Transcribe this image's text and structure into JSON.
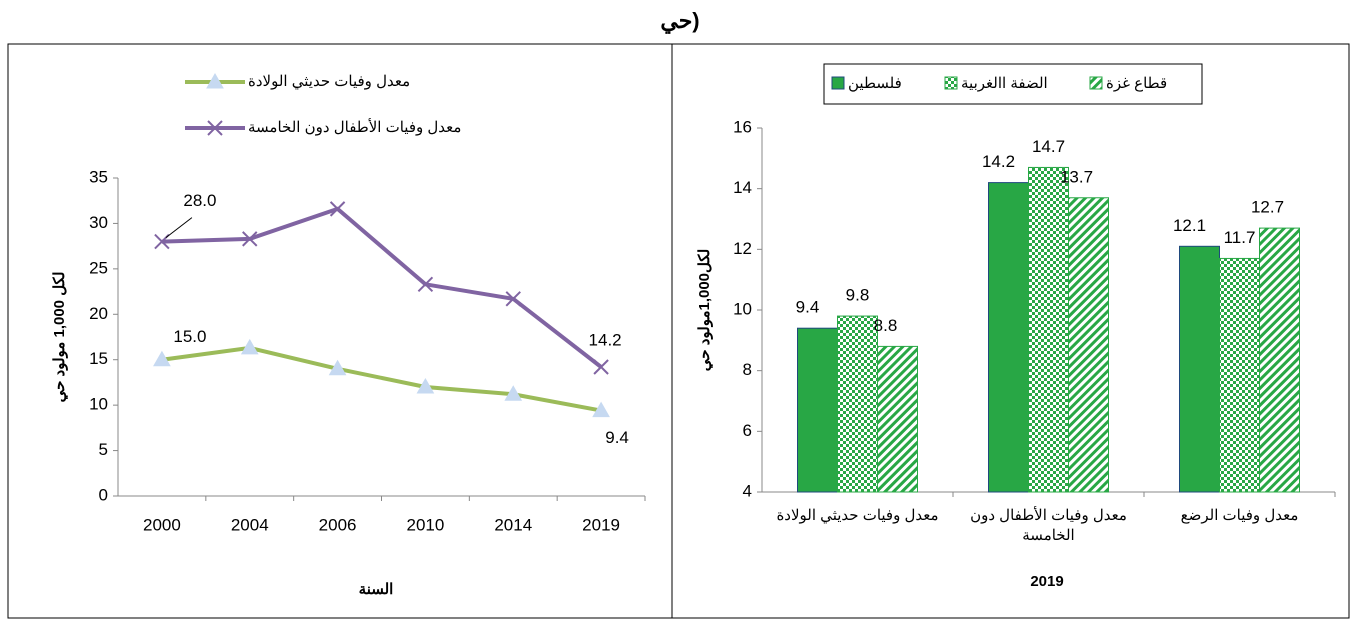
{
  "heading": "حي)",
  "chart_data": [
    {
      "type": "line",
      "categories": [
        "2000",
        "2004",
        "2006",
        "2010",
        "2014",
        "2019"
      ],
      "series": [
        {
          "name": "معدل وفيات حديثي الولادة",
          "color": "#9bbb59",
          "marker": "triangle",
          "values": [
            15.0,
            16.3,
            14.0,
            12.0,
            11.2,
            9.4
          ],
          "value_labels": [
            "15.0",
            null,
            null,
            null,
            null,
            "9.4"
          ]
        },
        {
          "name": "معدل وفيات الأطفال دون الخامسة",
          "color": "#8064a2",
          "marker": "x",
          "values": [
            28.0,
            28.3,
            31.6,
            23.3,
            21.7,
            14.2
          ],
          "value_labels": [
            "28.0",
            null,
            null,
            null,
            null,
            "14.2"
          ]
        }
      ],
      "ylim": [
        0,
        35
      ],
      "yticks": [
        0,
        5,
        10,
        15,
        20,
        25,
        30,
        35
      ],
      "ylabel": "لكل 1,000 مولود حي",
      "xlabel": "السنة"
    },
    {
      "type": "bar",
      "categories": [
        "معدل وفيات حديثي الولادة",
        "معدل وفيات الأطفال دون الخامسة",
        "معدل وفيات الرضع"
      ],
      "series": [
        {
          "name": "فلسطين",
          "color": "#28a745",
          "values": [
            9.4,
            14.2,
            12.1
          ]
        },
        {
          "name": "الضفة االغربية",
          "color": "#28a745",
          "values": [
            9.8,
            14.7,
            11.7
          ]
        },
        {
          "name": "قطاع غزة",
          "color": "#28a745",
          "values": [
            8.8,
            13.7,
            12.7
          ]
        }
      ],
      "ylim": [
        4,
        16
      ],
      "yticks": [
        4,
        6,
        8,
        10,
        12,
        14,
        16
      ],
      "ylabel": "لكل1,000مولود حي",
      "xlabel": "2019",
      "legend": "top"
    }
  ]
}
